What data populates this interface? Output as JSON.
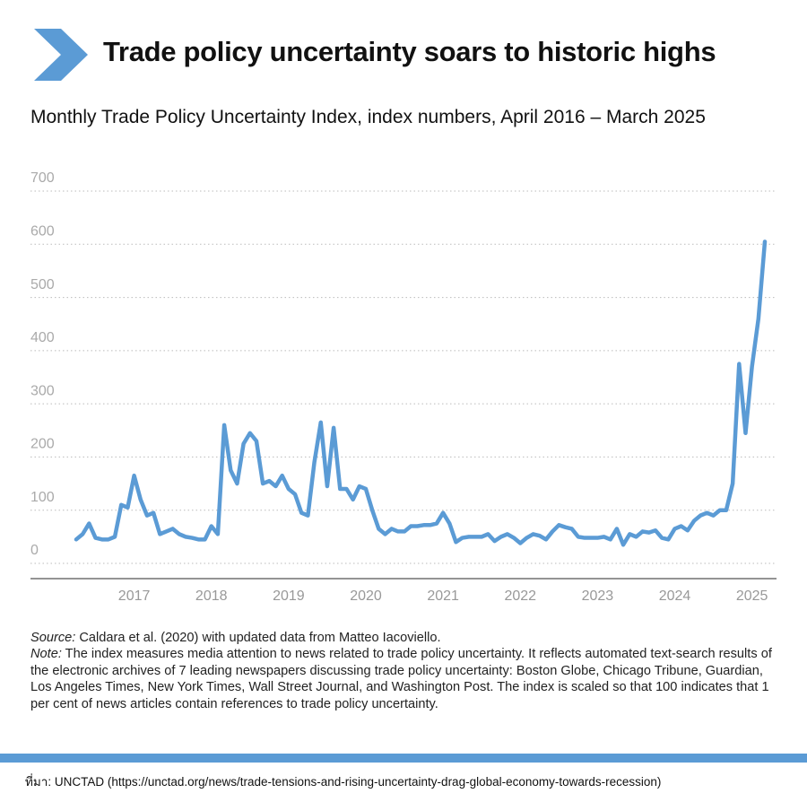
{
  "title": "Trade policy uncertainty soars to historic highs",
  "chart_data": {
    "type": "line",
    "title": "Monthly Trade Policy Uncertainty Index, index numbers, April 2016 – March 2025",
    "categories": [
      null,
      null,
      null,
      null,
      null,
      null,
      null,
      null,
      null,
      "2017",
      null,
      null,
      null,
      null,
      null,
      null,
      null,
      null,
      null,
      null,
      null,
      "2018",
      null,
      null,
      null,
      null,
      null,
      null,
      null,
      null,
      null,
      null,
      null,
      "2019",
      null,
      null,
      null,
      null,
      null,
      null,
      null,
      null,
      null,
      null,
      null,
      "2020",
      null,
      null,
      null,
      null,
      null,
      null,
      null,
      null,
      null,
      null,
      null,
      "2021",
      null,
      null,
      null,
      null,
      null,
      null,
      null,
      null,
      null,
      null,
      null,
      "2022",
      null,
      null,
      null,
      null,
      null,
      null,
      null,
      null,
      null,
      null,
      null,
      "2023",
      null,
      null,
      null,
      null,
      null,
      null,
      null,
      null,
      null,
      null,
      null,
      "2024",
      null,
      null,
      null,
      null,
      null,
      null,
      null,
      null,
      null,
      null,
      null,
      "2025",
      null,
      null
    ],
    "series": [
      {
        "name": "Trade Policy Uncertainty Index",
        "color": "#5b9bd5",
        "values": [
          45,
          55,
          75,
          48,
          45,
          45,
          50,
          110,
          105,
          165,
          120,
          90,
          95,
          55,
          60,
          65,
          55,
          50,
          48,
          45,
          45,
          70,
          55,
          260,
          175,
          150,
          225,
          245,
          230,
          150,
          155,
          145,
          165,
          140,
          130,
          95,
          90,
          190,
          265,
          145,
          255,
          140,
          140,
          120,
          145,
          140,
          100,
          65,
          55,
          65,
          60,
          60,
          70,
          70,
          72,
          72,
          75,
          95,
          75,
          40,
          48,
          50,
          50,
          50,
          55,
          42,
          50,
          55,
          48,
          38,
          48,
          55,
          52,
          45,
          60,
          72,
          68,
          65,
          50,
          48,
          48,
          48,
          50,
          45,
          65,
          35,
          55,
          50,
          60,
          58,
          62,
          48,
          45,
          65,
          70,
          62,
          80,
          90,
          95,
          90,
          100,
          100,
          150,
          375,
          245,
          370,
          460,
          605
        ]
      }
    ],
    "ylim": [
      0,
      700
    ],
    "yticks": [
      0,
      100,
      200,
      300,
      400,
      500,
      600,
      700
    ],
    "grid": true
  },
  "notes": {
    "source_label": "Source:",
    "source": " Caldara et al. (2020) with updated data from Matteo Iacoviello.",
    "note_label": "Note:",
    "note": " The index measures media attention to news related to trade policy uncertainty. It reflects automated text-search results of the electronic archives of 7 leading newspapers discussing trade policy uncertainty: Boston Globe, Chicago Tribune, Guardian, Los Angeles Times, New York Times, Wall Street Journal, and Washington Post. The index is scaled so that 100 indicates that 1 per cent of news articles contain references to trade policy uncertainty."
  },
  "footer": "ที่มา: UNCTAD (https://unctad.org/news/trade-tensions-and-rising-uncertainty-drag-global-economy-towards-recession)"
}
